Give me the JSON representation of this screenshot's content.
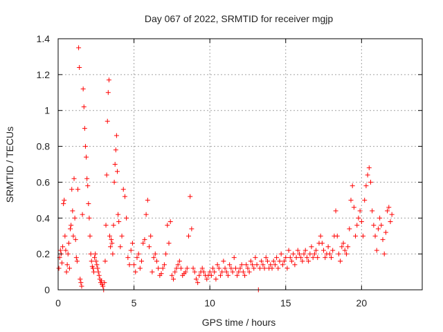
{
  "colors": {
    "series": "#ff0000",
    "axis": "#000000",
    "grid": "#a0a0a0",
    "text": "#222222",
    "background": "#ffffff"
  },
  "chart_data": {
    "type": "scatter",
    "title": "Day 067 of 2022, SRMTID for receiver mgjp",
    "xlabel": "GPS time / hours",
    "ylabel": "SRMTID / TECUs",
    "xlim": [
      0,
      24
    ],
    "ylim": [
      0,
      1.4
    ],
    "xticks": [
      0,
      5,
      10,
      15,
      20
    ],
    "yticks": [
      0,
      0.2,
      0.4,
      0.6,
      0.8,
      1,
      1.2,
      1.4
    ],
    "xtick_labels": [
      "0",
      "5",
      "10",
      "15",
      "20"
    ],
    "ytick_labels": [
      "0",
      "0.2",
      "0.4",
      "0.6",
      "0.8",
      "1",
      "1.2",
      "1.4"
    ],
    "grid": true,
    "marker": "+",
    "series": [
      {
        "name": "SRMTID",
        "color": "#ff0000",
        "points": [
          [
            0.05,
            0.12
          ],
          [
            0.1,
            0.18
          ],
          [
            0.15,
            0.22
          ],
          [
            0.2,
            0.2
          ],
          [
            0.25,
            0.15
          ],
          [
            0.3,
            0.24
          ],
          [
            0.35,
            0.48
          ],
          [
            0.4,
            0.5
          ],
          [
            0.45,
            0.3
          ],
          [
            0.5,
            0.22
          ],
          [
            0.55,
            0.1
          ],
          [
            0.6,
            0.14
          ],
          [
            0.65,
            0.2
          ],
          [
            0.7,
            0.26
          ],
          [
            0.75,
            0.12
          ],
          [
            0.8,
            0.34
          ],
          [
            0.85,
            0.36
          ],
          [
            0.9,
            0.56
          ],
          [
            0.95,
            0.44
          ],
          [
            1.0,
            0.3
          ],
          [
            1.05,
            0.62
          ],
          [
            1.1,
            0.4
          ],
          [
            1.15,
            0.28
          ],
          [
            1.2,
            0.18
          ],
          [
            1.25,
            0.16
          ],
          [
            1.3,
            0.56
          ],
          [
            1.35,
            1.35
          ],
          [
            1.4,
            1.24
          ],
          [
            1.45,
            0.06
          ],
          [
            1.5,
            0.04
          ],
          [
            1.55,
            0.02
          ],
          [
            1.6,
            0.42
          ],
          [
            1.65,
            1.12
          ],
          [
            1.7,
            1.02
          ],
          [
            1.75,
            0.9
          ],
          [
            1.8,
            0.8
          ],
          [
            1.85,
            0.74
          ],
          [
            1.9,
            0.62
          ],
          [
            1.95,
            0.58
          ],
          [
            2.0,
            0.48
          ],
          [
            2.05,
            0.4
          ],
          [
            2.1,
            0.3
          ],
          [
            2.15,
            0.2
          ],
          [
            2.2,
            0.16
          ],
          [
            2.25,
            0.13
          ],
          [
            2.3,
            0.12
          ],
          [
            2.35,
            0.1
          ],
          [
            2.4,
            0.18
          ],
          [
            2.45,
            0.2
          ],
          [
            2.5,
            0.16
          ],
          [
            2.55,
            0.14
          ],
          [
            2.6,
            0.12
          ],
          [
            2.65,
            0.1
          ],
          [
            2.7,
            0.08
          ],
          [
            2.75,
            0.06
          ],
          [
            2.8,
            0.04
          ],
          [
            2.85,
            0.05
          ],
          [
            2.9,
            0.03
          ],
          [
            2.95,
            0.02
          ],
          [
            3.0,
            0.0
          ],
          [
            3.05,
            0.04
          ],
          [
            3.1,
            0.16
          ],
          [
            3.15,
            0.36
          ],
          [
            3.2,
            0.64
          ],
          [
            3.25,
            0.94
          ],
          [
            3.3,
            1.1
          ],
          [
            3.35,
            1.17
          ],
          [
            3.4,
            0.3
          ],
          [
            3.45,
            0.24
          ],
          [
            3.5,
            0.28
          ],
          [
            3.55,
            0.26
          ],
          [
            3.6,
            0.2
          ],
          [
            3.65,
            0.36
          ],
          [
            3.7,
            0.6
          ],
          [
            3.75,
            0.7
          ],
          [
            3.8,
            0.78
          ],
          [
            3.85,
            0.86
          ],
          [
            3.9,
            0.66
          ],
          [
            3.95,
            0.42
          ],
          [
            4.0,
            0.38
          ],
          [
            4.1,
            0.24
          ],
          [
            4.2,
            0.3
          ],
          [
            4.3,
            0.56
          ],
          [
            4.4,
            0.52
          ],
          [
            4.5,
            0.4
          ],
          [
            4.6,
            0.18
          ],
          [
            4.7,
            0.14
          ],
          [
            4.8,
            0.22
          ],
          [
            4.9,
            0.26
          ],
          [
            5.0,
            0.14
          ],
          [
            5.1,
            0.1
          ],
          [
            5.2,
            0.18
          ],
          [
            5.3,
            0.2
          ],
          [
            5.4,
            0.12
          ],
          [
            5.5,
            0.16
          ],
          [
            5.6,
            0.26
          ],
          [
            5.7,
            0.28
          ],
          [
            5.8,
            0.42
          ],
          [
            5.9,
            0.5
          ],
          [
            6.0,
            0.24
          ],
          [
            6.1,
            0.3
          ],
          [
            6.2,
            0.1
          ],
          [
            6.3,
            0.18
          ],
          [
            6.4,
            0.2
          ],
          [
            6.5,
            0.16
          ],
          [
            6.6,
            0.12
          ],
          [
            6.7,
            0.08
          ],
          [
            6.8,
            0.09
          ],
          [
            6.9,
            0.12
          ],
          [
            7.0,
            0.14
          ],
          [
            7.1,
            0.2
          ],
          [
            7.2,
            0.36
          ],
          [
            7.3,
            0.26
          ],
          [
            7.4,
            0.38
          ],
          [
            7.5,
            0.08
          ],
          [
            7.6,
            0.06
          ],
          [
            7.7,
            0.1
          ],
          [
            7.8,
            0.12
          ],
          [
            7.9,
            0.14
          ],
          [
            8.0,
            0.16
          ],
          [
            8.1,
            0.12
          ],
          [
            8.2,
            0.08
          ],
          [
            8.3,
            0.09
          ],
          [
            8.4,
            0.1
          ],
          [
            8.5,
            0.12
          ],
          [
            8.6,
            0.3
          ],
          [
            8.7,
            0.52
          ],
          [
            8.8,
            0.34
          ],
          [
            8.9,
            0.12
          ],
          [
            9.0,
            0.1
          ],
          [
            9.1,
            0.06
          ],
          [
            9.2,
            0.04
          ],
          [
            9.3,
            0.08
          ],
          [
            9.4,
            0.1
          ],
          [
            9.5,
            0.12
          ],
          [
            9.6,
            0.1
          ],
          [
            9.7,
            0.08
          ],
          [
            9.8,
            0.06
          ],
          [
            9.9,
            0.08
          ],
          [
            10.0,
            0.1
          ],
          [
            10.1,
            0.08
          ],
          [
            10.2,
            0.12
          ],
          [
            10.3,
            0.1
          ],
          [
            10.4,
            0.06
          ],
          [
            10.5,
            0.14
          ],
          [
            10.6,
            0.12
          ],
          [
            10.7,
            0.08
          ],
          [
            10.8,
            0.1
          ],
          [
            10.9,
            0.16
          ],
          [
            11.0,
            0.12
          ],
          [
            11.1,
            0.1
          ],
          [
            11.2,
            0.08
          ],
          [
            11.3,
            0.14
          ],
          [
            11.4,
            0.12
          ],
          [
            11.5,
            0.1
          ],
          [
            11.6,
            0.18
          ],
          [
            11.7,
            0.12
          ],
          [
            11.8,
            0.08
          ],
          [
            11.9,
            0.1
          ],
          [
            12.0,
            0.12
          ],
          [
            12.1,
            0.14
          ],
          [
            12.2,
            0.1
          ],
          [
            12.3,
            0.08
          ],
          [
            12.4,
            0.14
          ],
          [
            12.5,
            0.12
          ],
          [
            12.6,
            0.1
          ],
          [
            12.7,
            0.16
          ],
          [
            12.8,
            0.14
          ],
          [
            12.9,
            0.12
          ],
          [
            13.0,
            0.18
          ],
          [
            13.1,
            0.14
          ],
          [
            13.2,
            0.0
          ],
          [
            13.3,
            0.12
          ],
          [
            13.4,
            0.16
          ],
          [
            13.5,
            0.14
          ],
          [
            13.6,
            0.12
          ],
          [
            13.7,
            0.18
          ],
          [
            13.8,
            0.16
          ],
          [
            13.9,
            0.12
          ],
          [
            14.0,
            0.14
          ],
          [
            14.1,
            0.12
          ],
          [
            14.2,
            0.16
          ],
          [
            14.3,
            0.14
          ],
          [
            14.4,
            0.18
          ],
          [
            14.5,
            0.12
          ],
          [
            14.6,
            0.16
          ],
          [
            14.7,
            0.2
          ],
          [
            14.8,
            0.14
          ],
          [
            14.9,
            0.16
          ],
          [
            15.0,
            0.18
          ],
          [
            15.1,
            0.12
          ],
          [
            15.2,
            0.22
          ],
          [
            15.3,
            0.18
          ],
          [
            15.4,
            0.16
          ],
          [
            15.5,
            0.2
          ],
          [
            15.6,
            0.14
          ],
          [
            15.7,
            0.18
          ],
          [
            15.8,
            0.22
          ],
          [
            15.9,
            0.2
          ],
          [
            16.0,
            0.18
          ],
          [
            16.1,
            0.16
          ],
          [
            16.2,
            0.2
          ],
          [
            16.3,
            0.22
          ],
          [
            16.4,
            0.18
          ],
          [
            16.5,
            0.16
          ],
          [
            16.6,
            0.2
          ],
          [
            16.7,
            0.24
          ],
          [
            16.8,
            0.18
          ],
          [
            16.9,
            0.2
          ],
          [
            17.0,
            0.22
          ],
          [
            17.1,
            0.18
          ],
          [
            17.2,
            0.26
          ],
          [
            17.3,
            0.3
          ],
          [
            17.4,
            0.26
          ],
          [
            17.5,
            0.22
          ],
          [
            17.6,
            0.18
          ],
          [
            17.7,
            0.2
          ],
          [
            17.8,
            0.24
          ],
          [
            17.9,
            0.2
          ],
          [
            18.0,
            0.18
          ],
          [
            18.1,
            0.22
          ],
          [
            18.2,
            0.3
          ],
          [
            18.3,
            0.44
          ],
          [
            18.4,
            0.3
          ],
          [
            18.5,
            0.2
          ],
          [
            18.6,
            0.16
          ],
          [
            18.7,
            0.24
          ],
          [
            18.8,
            0.26
          ],
          [
            18.9,
            0.22
          ],
          [
            19.0,
            0.2
          ],
          [
            19.1,
            0.24
          ],
          [
            19.2,
            0.34
          ],
          [
            19.3,
            0.5
          ],
          [
            19.4,
            0.58
          ],
          [
            19.5,
            0.46
          ],
          [
            19.6,
            0.3
          ],
          [
            19.7,
            0.36
          ],
          [
            19.8,
            0.4
          ],
          [
            19.9,
            0.44
          ],
          [
            20.0,
            0.38
          ],
          [
            20.1,
            0.3
          ],
          [
            20.2,
            0.5
          ],
          [
            20.3,
            0.58
          ],
          [
            20.4,
            0.64
          ],
          [
            20.5,
            0.68
          ],
          [
            20.6,
            0.6
          ],
          [
            20.7,
            0.44
          ],
          [
            20.8,
            0.36
          ],
          [
            20.9,
            0.3
          ],
          [
            21.0,
            0.22
          ],
          [
            21.1,
            0.34
          ],
          [
            21.2,
            0.4
          ],
          [
            21.3,
            0.36
          ],
          [
            21.4,
            0.28
          ],
          [
            21.5,
            0.2
          ],
          [
            21.6,
            0.32
          ],
          [
            21.7,
            0.44
          ],
          [
            21.8,
            0.46
          ],
          [
            21.9,
            0.38
          ],
          [
            22.0,
            0.42
          ]
        ]
      }
    ]
  }
}
